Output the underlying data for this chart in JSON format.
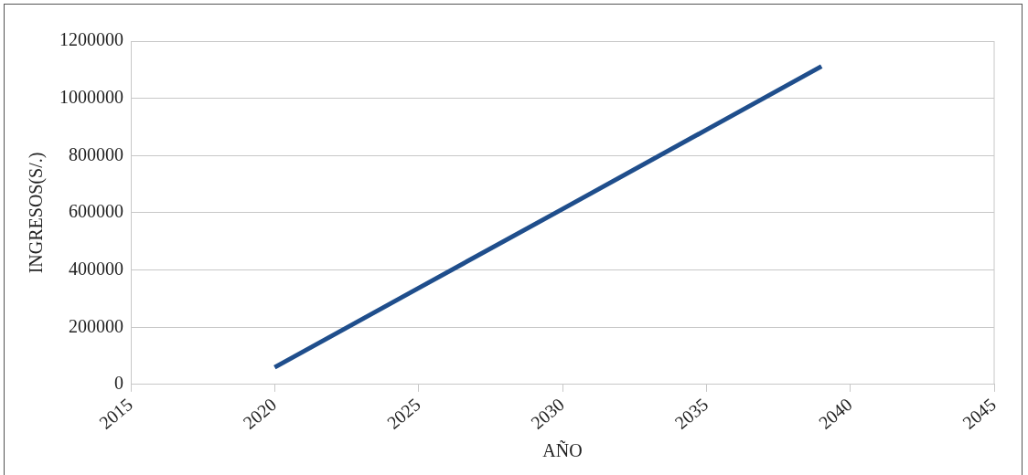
{
  "chart_data": {
    "type": "line",
    "xlabel": "AÑO",
    "ylabel": "INGRESOS(S/.)",
    "x": [
      2020,
      2025,
      2030,
      2035,
      2039
    ],
    "series": [
      {
        "color": "#1f4e8c",
        "values": [
          60000,
          337000,
          613000,
          890000,
          1112000
        ]
      }
    ],
    "xlim": [
      2015,
      2045
    ],
    "xticks": [
      2015,
      2020,
      2025,
      2030,
      2035,
      2040,
      2045
    ],
    "ylim": [
      0,
      1200000
    ],
    "yticks": [
      0,
      200000,
      400000,
      600000,
      800000,
      1000000,
      1200000
    ],
    "grid": "y",
    "legend": false,
    "marker": "none",
    "line_style": "solid"
  }
}
